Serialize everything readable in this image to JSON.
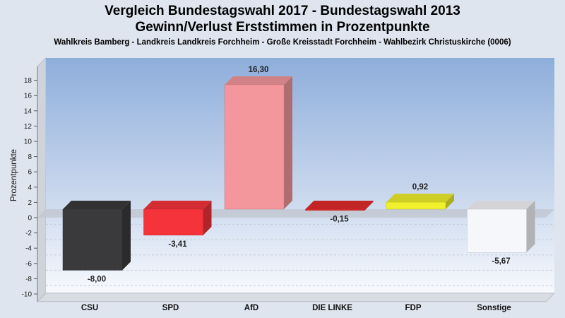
{
  "title": "Vergleich Bundestagswahl 2017 - Bundestagswahl 2013",
  "subtitle": "Gewinn/Verlust Erststimmen in Prozentpunkte",
  "caption": "Wahlkreis Bamberg - Landkreis Landkreis Forchheim - Große Kreisstadt Forchheim - Wahlbezirk Christuskirche (0006)",
  "chart_data": {
    "type": "bar",
    "ylabel": "Prozentpunkte",
    "xlabel": "",
    "ylim": [
      -11,
      19
    ],
    "yticks": [
      18,
      16,
      14,
      12,
      10,
      8,
      6,
      4,
      2,
      0,
      -2,
      -4,
      -6,
      -8,
      -10
    ],
    "grid": true,
    "categories": [
      "CSU",
      "SPD",
      "AfD",
      "DIE LINKE",
      "FDP",
      "Sonstige"
    ],
    "values": [
      -8.0,
      -3.41,
      16.3,
      -0.15,
      0.92,
      -5.67
    ],
    "value_labels": [
      "-8,00",
      "-3,41",
      "16,30",
      "-0,15",
      "0,92",
      "-5,67"
    ],
    "colors": [
      "#3a3a3c",
      "#f5333b",
      "#f4979c",
      "#e22b2b",
      "#f0f02c",
      "#f6f7fb"
    ]
  }
}
